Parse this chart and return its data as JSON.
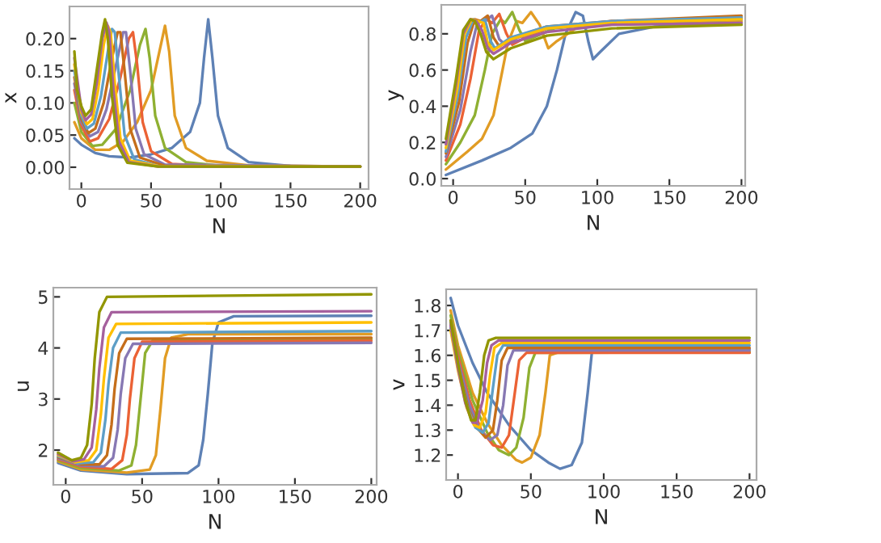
{
  "chart_data": [
    {
      "type": "line",
      "xlabel": "N",
      "ylabel": "x",
      "xlim": [
        -8.5,
        206
      ],
      "ylim": [
        -0.034,
        0.25
      ],
      "xticks": [
        0,
        50,
        100,
        150,
        200
      ],
      "yticks": [
        {
          "value": 0,
          "label": "0.00"
        },
        {
          "value": 0.05,
          "label": "0.05"
        },
        {
          "value": 0.1,
          "label": "0.10"
        },
        {
          "value": 0.15,
          "label": "0.15"
        },
        {
          "value": 0.2,
          "label": "0.20"
        }
      ],
      "series": [
        {
          "color": "#5e81b5",
          "x": [
            -5,
            0,
            10,
            20,
            35,
            50,
            65,
            78,
            85,
            88,
            91,
            94,
            98,
            105,
            120,
            150,
            200
          ],
          "values": [
            0.045,
            0.035,
            0.022,
            0.017,
            0.015,
            0.02,
            0.03,
            0.055,
            0.1,
            0.17,
            0.23,
            0.17,
            0.08,
            0.03,
            0.008,
            0.002,
            0.001
          ]
        },
        {
          "color": "#e19c24",
          "x": [
            -5,
            0,
            10,
            20,
            30,
            40,
            50,
            56,
            60,
            63,
            67,
            75,
            90,
            120,
            200
          ],
          "values": [
            0.07,
            0.045,
            0.027,
            0.027,
            0.04,
            0.07,
            0.12,
            0.18,
            0.22,
            0.18,
            0.08,
            0.03,
            0.01,
            0.003,
            0.001
          ]
        },
        {
          "color": "#8fb032",
          "x": [
            -5,
            0,
            8,
            15,
            25,
            35,
            42,
            46,
            49,
            53,
            60,
            75,
            100,
            200
          ],
          "values": [
            0.1,
            0.055,
            0.033,
            0.035,
            0.06,
            0.12,
            0.19,
            0.215,
            0.17,
            0.08,
            0.03,
            0.008,
            0.002,
            0.001
          ]
        },
        {
          "color": "#eb6235",
          "x": [
            -5,
            0,
            6,
            12,
            20,
            28,
            34,
            37,
            40,
            44,
            50,
            65,
            100,
            200
          ],
          "values": [
            0.12,
            0.065,
            0.04,
            0.045,
            0.075,
            0.14,
            0.2,
            0.21,
            0.16,
            0.07,
            0.025,
            0.005,
            0.001,
            0.001
          ]
        },
        {
          "color": "#8778b3",
          "x": [
            -5,
            0,
            6,
            12,
            18,
            25,
            30,
            32,
            35,
            39,
            45,
            60,
            200
          ],
          "values": [
            0.13,
            0.07,
            0.048,
            0.055,
            0.09,
            0.16,
            0.21,
            0.21,
            0.15,
            0.06,
            0.02,
            0.004,
            0.001
          ]
        },
        {
          "color": "#c56e1a",
          "x": [
            -5,
            0,
            5,
            10,
            16,
            22,
            26,
            28,
            31,
            35,
            42,
            60,
            200
          ],
          "values": [
            0.14,
            0.075,
            0.053,
            0.06,
            0.1,
            0.17,
            0.21,
            0.21,
            0.15,
            0.06,
            0.015,
            0.002,
            0.001
          ]
        },
        {
          "color": "#5d9ec7",
          "x": [
            -5,
            0,
            4,
            9,
            14,
            19,
            22,
            24,
            27,
            31,
            38,
            55,
            200
          ],
          "values": [
            0.15,
            0.08,
            0.06,
            0.068,
            0.11,
            0.18,
            0.215,
            0.21,
            0.14,
            0.05,
            0.012,
            0.002,
            0.001
          ]
        },
        {
          "color": "#ffbf00",
          "x": [
            -5,
            0,
            4,
            8,
            12,
            16,
            19,
            21,
            24,
            28,
            35,
            55,
            200
          ],
          "values": [
            0.16,
            0.085,
            0.067,
            0.075,
            0.12,
            0.19,
            0.22,
            0.21,
            0.13,
            0.045,
            0.01,
            0.002,
            0.001
          ]
        },
        {
          "color": "#a5609d",
          "x": [
            -5,
            0,
            3,
            7,
            11,
            15,
            18,
            20,
            23,
            27,
            34,
            55,
            200
          ],
          "values": [
            0.17,
            0.09,
            0.073,
            0.082,
            0.13,
            0.2,
            0.225,
            0.21,
            0.12,
            0.04,
            0.008,
            0.001,
            0.001
          ]
        },
        {
          "color": "#929600",
          "x": [
            -5,
            -3,
            0,
            3,
            7,
            11,
            15,
            17,
            19,
            22,
            26,
            33,
            55,
            200
          ],
          "values": [
            0.18,
            0.12,
            0.095,
            0.08,
            0.09,
            0.15,
            0.21,
            0.23,
            0.2,
            0.11,
            0.035,
            0.007,
            0.001,
            0.001
          ]
        }
      ]
    },
    {
      "type": "line",
      "xlabel": "N",
      "ylabel": "y",
      "xlim": [
        -8.2,
        202.6
      ],
      "ylim": [
        -0.04,
        0.96
      ],
      "xticks": [
        0,
        50,
        100,
        150,
        200
      ],
      "yticks": [
        {
          "value": 0,
          "label": "0.0"
        },
        {
          "value": 0.2,
          "label": "0.2"
        },
        {
          "value": 0.4,
          "label": "0.4"
        },
        {
          "value": 0.6,
          "label": "0.6"
        },
        {
          "value": 0.8,
          "label": "0.8"
        }
      ],
      "series": [
        {
          "color": "#5e81b5",
          "x": [
            -5,
            20,
            40,
            55,
            65,
            72,
            78,
            85,
            90,
            94,
            97,
            102,
            115,
            140,
            200
          ],
          "values": [
            0.02,
            0.1,
            0.17,
            0.25,
            0.4,
            0.6,
            0.8,
            0.92,
            0.9,
            0.75,
            0.66,
            0.7,
            0.8,
            0.84,
            0.86
          ]
        },
        {
          "color": "#e19c24",
          "x": [
            -5,
            10,
            20,
            28,
            33,
            38,
            44,
            48,
            54,
            60,
            66,
            72,
            85,
            120,
            200
          ],
          "values": [
            0.05,
            0.15,
            0.22,
            0.35,
            0.55,
            0.75,
            0.87,
            0.86,
            0.92,
            0.85,
            0.72,
            0.76,
            0.83,
            0.86,
            0.87
          ]
        },
        {
          "color": "#8fb032",
          "x": [
            -5,
            5,
            15,
            22,
            27,
            33,
            36,
            41,
            46,
            50,
            56,
            70,
            110,
            200
          ],
          "values": [
            0.08,
            0.2,
            0.35,
            0.6,
            0.8,
            0.88,
            0.86,
            0.92,
            0.82,
            0.76,
            0.78,
            0.83,
            0.86,
            0.88
          ]
        },
        {
          "color": "#eb6235",
          "x": [
            -5,
            5,
            12,
            18,
            23,
            27,
            32,
            37,
            41,
            48,
            65,
            110,
            200
          ],
          "values": [
            0.1,
            0.3,
            0.55,
            0.82,
            0.88,
            0.86,
            0.91,
            0.8,
            0.74,
            0.77,
            0.83,
            0.87,
            0.89
          ]
        },
        {
          "color": "#8778b3",
          "x": [
            -5,
            5,
            12,
            17,
            22,
            27,
            32,
            36,
            45,
            65,
            110,
            200
          ],
          "values": [
            0.12,
            0.38,
            0.7,
            0.87,
            0.87,
            0.9,
            0.77,
            0.74,
            0.78,
            0.83,
            0.86,
            0.88
          ]
        },
        {
          "color": "#c56e1a",
          "x": [
            -5,
            4,
            10,
            15,
            19,
            24,
            28,
            32,
            42,
            65,
            110,
            200
          ],
          "values": [
            0.14,
            0.42,
            0.75,
            0.88,
            0.87,
            0.9,
            0.78,
            0.73,
            0.78,
            0.84,
            0.87,
            0.9
          ]
        },
        {
          "color": "#5d9ec7",
          "x": [
            -5,
            3,
            9,
            14,
            18,
            22,
            26,
            29,
            40,
            65,
            110,
            200
          ],
          "values": [
            0.15,
            0.45,
            0.78,
            0.88,
            0.86,
            0.88,
            0.76,
            0.72,
            0.78,
            0.84,
            0.87,
            0.89
          ]
        },
        {
          "color": "#ffbf00",
          "x": [
            -5,
            3,
            8,
            13,
            17,
            21,
            24,
            28,
            40,
            65,
            110,
            200
          ],
          "values": [
            0.17,
            0.5,
            0.8,
            0.88,
            0.87,
            0.86,
            0.75,
            0.71,
            0.77,
            0.83,
            0.86,
            0.88
          ]
        },
        {
          "color": "#a5609d",
          "x": [
            -5,
            2,
            7,
            12,
            16,
            20,
            24,
            28,
            40,
            65,
            110,
            200
          ],
          "values": [
            0.19,
            0.52,
            0.8,
            0.88,
            0.87,
            0.82,
            0.72,
            0.69,
            0.75,
            0.81,
            0.85,
            0.86
          ]
        },
        {
          "color": "#929600",
          "x": [
            -5,
            2,
            7,
            12,
            15,
            19,
            23,
            28,
            40,
            65,
            110,
            200
          ],
          "values": [
            0.22,
            0.55,
            0.82,
            0.88,
            0.87,
            0.8,
            0.7,
            0.66,
            0.72,
            0.79,
            0.83,
            0.85
          ]
        }
      ]
    },
    {
      "type": "line",
      "xlabel": "N",
      "ylabel": "u",
      "xlim": [
        -8.1,
        203.5
      ],
      "ylim": [
        1.32,
        5.18
      ],
      "xticks": [
        0,
        50,
        100,
        150,
        200
      ],
      "yticks": [
        2,
        3,
        4,
        5
      ],
      "series": [
        {
          "color": "#5e81b5",
          "x": [
            -5,
            10,
            40,
            80,
            87,
            90,
            93,
            96,
            100,
            110,
            200
          ],
          "values": [
            1.75,
            1.6,
            1.53,
            1.55,
            1.7,
            2.2,
            3.1,
            4.1,
            4.5,
            4.62,
            4.63
          ]
        },
        {
          "color": "#e19c24",
          "x": [
            -5,
            10,
            40,
            55,
            59,
            62,
            65,
            69,
            80,
            200
          ],
          "values": [
            1.78,
            1.62,
            1.56,
            1.62,
            1.9,
            2.8,
            3.8,
            4.2,
            4.27,
            4.27
          ]
        },
        {
          "color": "#8fb032",
          "x": [
            -5,
            10,
            35,
            43,
            46,
            49,
            52,
            57,
            200
          ],
          "values": [
            1.8,
            1.65,
            1.6,
            1.7,
            2.1,
            3.0,
            3.9,
            4.15,
            4.17
          ]
        },
        {
          "color": "#eb6235",
          "x": [
            -5,
            10,
            30,
            37,
            40,
            42,
            45,
            50,
            200
          ],
          "values": [
            1.82,
            1.68,
            1.63,
            1.8,
            2.3,
            3.0,
            3.8,
            4.12,
            4.14
          ]
        },
        {
          "color": "#8778b3",
          "x": [
            -5,
            10,
            25,
            31,
            34,
            36,
            39,
            44,
            200
          ],
          "values": [
            1.84,
            1.7,
            1.68,
            1.85,
            2.4,
            3.1,
            3.8,
            4.08,
            4.1
          ]
        },
        {
          "color": "#c56e1a",
          "x": [
            -5,
            10,
            22,
            27,
            30,
            32,
            35,
            40,
            200
          ],
          "values": [
            1.86,
            1.72,
            1.72,
            1.9,
            2.5,
            3.2,
            3.9,
            4.18,
            4.2
          ]
        },
        {
          "color": "#5d9ec7",
          "x": [
            -5,
            8,
            18,
            23,
            26,
            28,
            31,
            36,
            200
          ],
          "values": [
            1.88,
            1.74,
            1.76,
            1.95,
            2.6,
            3.3,
            4.0,
            4.3,
            4.33
          ]
        },
        {
          "color": "#ffbf00",
          "x": [
            -5,
            6,
            15,
            20,
            23,
            25,
            28,
            33,
            200
          ],
          "values": [
            1.9,
            1.76,
            1.8,
            2.0,
            2.7,
            3.4,
            4.2,
            4.47,
            4.5
          ]
        },
        {
          "color": "#a5609d",
          "x": [
            -5,
            5,
            12,
            17,
            20,
            22,
            25,
            30,
            200
          ],
          "values": [
            1.92,
            1.78,
            1.82,
            2.05,
            2.8,
            3.6,
            4.4,
            4.7,
            4.72
          ]
        },
        {
          "color": "#929600",
          "x": [
            -5,
            4,
            10,
            14,
            17,
            19,
            22,
            27,
            200
          ],
          "values": [
            1.95,
            1.8,
            1.85,
            2.1,
            2.9,
            3.8,
            4.7,
            5.0,
            5.05
          ]
        }
      ]
    },
    {
      "type": "line",
      "xlabel": "N",
      "ylabel": "v",
      "xlim": [
        -8.1,
        204.8
      ],
      "ylim": [
        1.1,
        1.865
      ],
      "xticks": [
        0,
        50,
        100,
        150,
        200
      ],
      "yticks": [
        1.2,
        1.3,
        1.4,
        1.5,
        1.6,
        1.7,
        1.8
      ],
      "series": [
        {
          "color": "#5e81b5",
          "x": [
            -5,
            0,
            10,
            20,
            35,
            50,
            62,
            70,
            78,
            85,
            89,
            92,
            100,
            200
          ],
          "values": [
            1.83,
            1.72,
            1.57,
            1.45,
            1.32,
            1.22,
            1.17,
            1.145,
            1.16,
            1.25,
            1.45,
            1.62,
            1.625,
            1.625
          ]
        },
        {
          "color": "#e19c24",
          "x": [
            -5,
            0,
            10,
            20,
            30,
            40,
            44,
            50,
            56,
            60,
            63,
            70,
            200
          ],
          "values": [
            1.78,
            1.64,
            1.45,
            1.33,
            1.24,
            1.18,
            1.17,
            1.19,
            1.28,
            1.45,
            1.6,
            1.615,
            1.615
          ]
        },
        {
          "color": "#8fb032",
          "x": [
            -5,
            0,
            10,
            20,
            28,
            35,
            40,
            45,
            49,
            53,
            200
          ],
          "values": [
            1.76,
            1.62,
            1.42,
            1.29,
            1.22,
            1.2,
            1.23,
            1.35,
            1.55,
            1.61,
            1.612
          ]
        },
        {
          "color": "#eb6235",
          "x": [
            -5,
            0,
            8,
            16,
            24,
            30,
            35,
            39,
            42,
            47,
            200
          ],
          "values": [
            1.74,
            1.6,
            1.42,
            1.3,
            1.24,
            1.23,
            1.28,
            1.45,
            1.58,
            1.61,
            1.61
          ]
        },
        {
          "color": "#8778b3",
          "x": [
            -5,
            0,
            8,
            15,
            22,
            27,
            31,
            34,
            38,
            200
          ],
          "values": [
            1.73,
            1.58,
            1.4,
            1.3,
            1.26,
            1.28,
            1.4,
            1.56,
            1.62,
            1.62
          ]
        },
        {
          "color": "#c56e1a",
          "x": [
            -5,
            0,
            7,
            13,
            19,
            24,
            27,
            30,
            34,
            200
          ],
          "values": [
            1.72,
            1.56,
            1.39,
            1.31,
            1.27,
            1.3,
            1.42,
            1.58,
            1.63,
            1.63
          ]
        },
        {
          "color": "#5d9ec7",
          "x": [
            -5,
            0,
            6,
            12,
            17,
            21,
            24,
            27,
            31,
            200
          ],
          "values": [
            1.71,
            1.55,
            1.4,
            1.31,
            1.29,
            1.33,
            1.47,
            1.6,
            1.64,
            1.64
          ]
        },
        {
          "color": "#ffbf00",
          "x": [
            -5,
            0,
            6,
            11,
            15,
            19,
            22,
            25,
            30,
            200
          ],
          "values": [
            1.7,
            1.54,
            1.39,
            1.32,
            1.31,
            1.37,
            1.52,
            1.63,
            1.65,
            1.65
          ]
        },
        {
          "color": "#a5609d",
          "x": [
            -5,
            0,
            5,
            10,
            13,
            17,
            20,
            23,
            28,
            200
          ],
          "values": [
            1.72,
            1.55,
            1.41,
            1.33,
            1.33,
            1.42,
            1.57,
            1.64,
            1.66,
            1.66
          ]
        },
        {
          "color": "#929600",
          "x": [
            -5,
            0,
            5,
            9,
            12,
            15,
            18,
            21,
            26,
            200
          ],
          "values": [
            1.74,
            1.57,
            1.42,
            1.34,
            1.34,
            1.45,
            1.6,
            1.66,
            1.67,
            1.67
          ]
        }
      ]
    }
  ]
}
